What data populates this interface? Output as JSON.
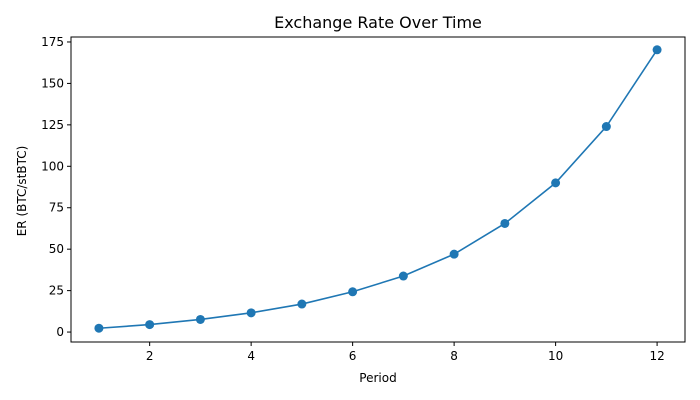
{
  "chart_data": {
    "type": "line",
    "title": "Exchange Rate Over Time",
    "xlabel": "Period",
    "ylabel": "ER (BTC/stBTC)",
    "x": [
      1,
      2,
      3,
      4,
      5,
      6,
      7,
      8,
      9,
      10,
      11,
      12
    ],
    "series": [
      {
        "values": [
          2.3,
          4.5,
          7.6,
          11.6,
          16.9,
          24.3,
          33.8,
          47.0,
          65.5,
          90.0,
          124.0,
          170.3
        ],
        "color": "#1f77b4",
        "marker": "circle"
      }
    ],
    "xlim": [
      0.45,
      12.55
    ],
    "ylim": [
      -6,
      178
    ],
    "xticks": [
      2,
      4,
      6,
      8,
      10,
      12
    ],
    "yticks": [
      0,
      25,
      50,
      75,
      100,
      125,
      150,
      175
    ],
    "grid": false,
    "legend": "none"
  }
}
